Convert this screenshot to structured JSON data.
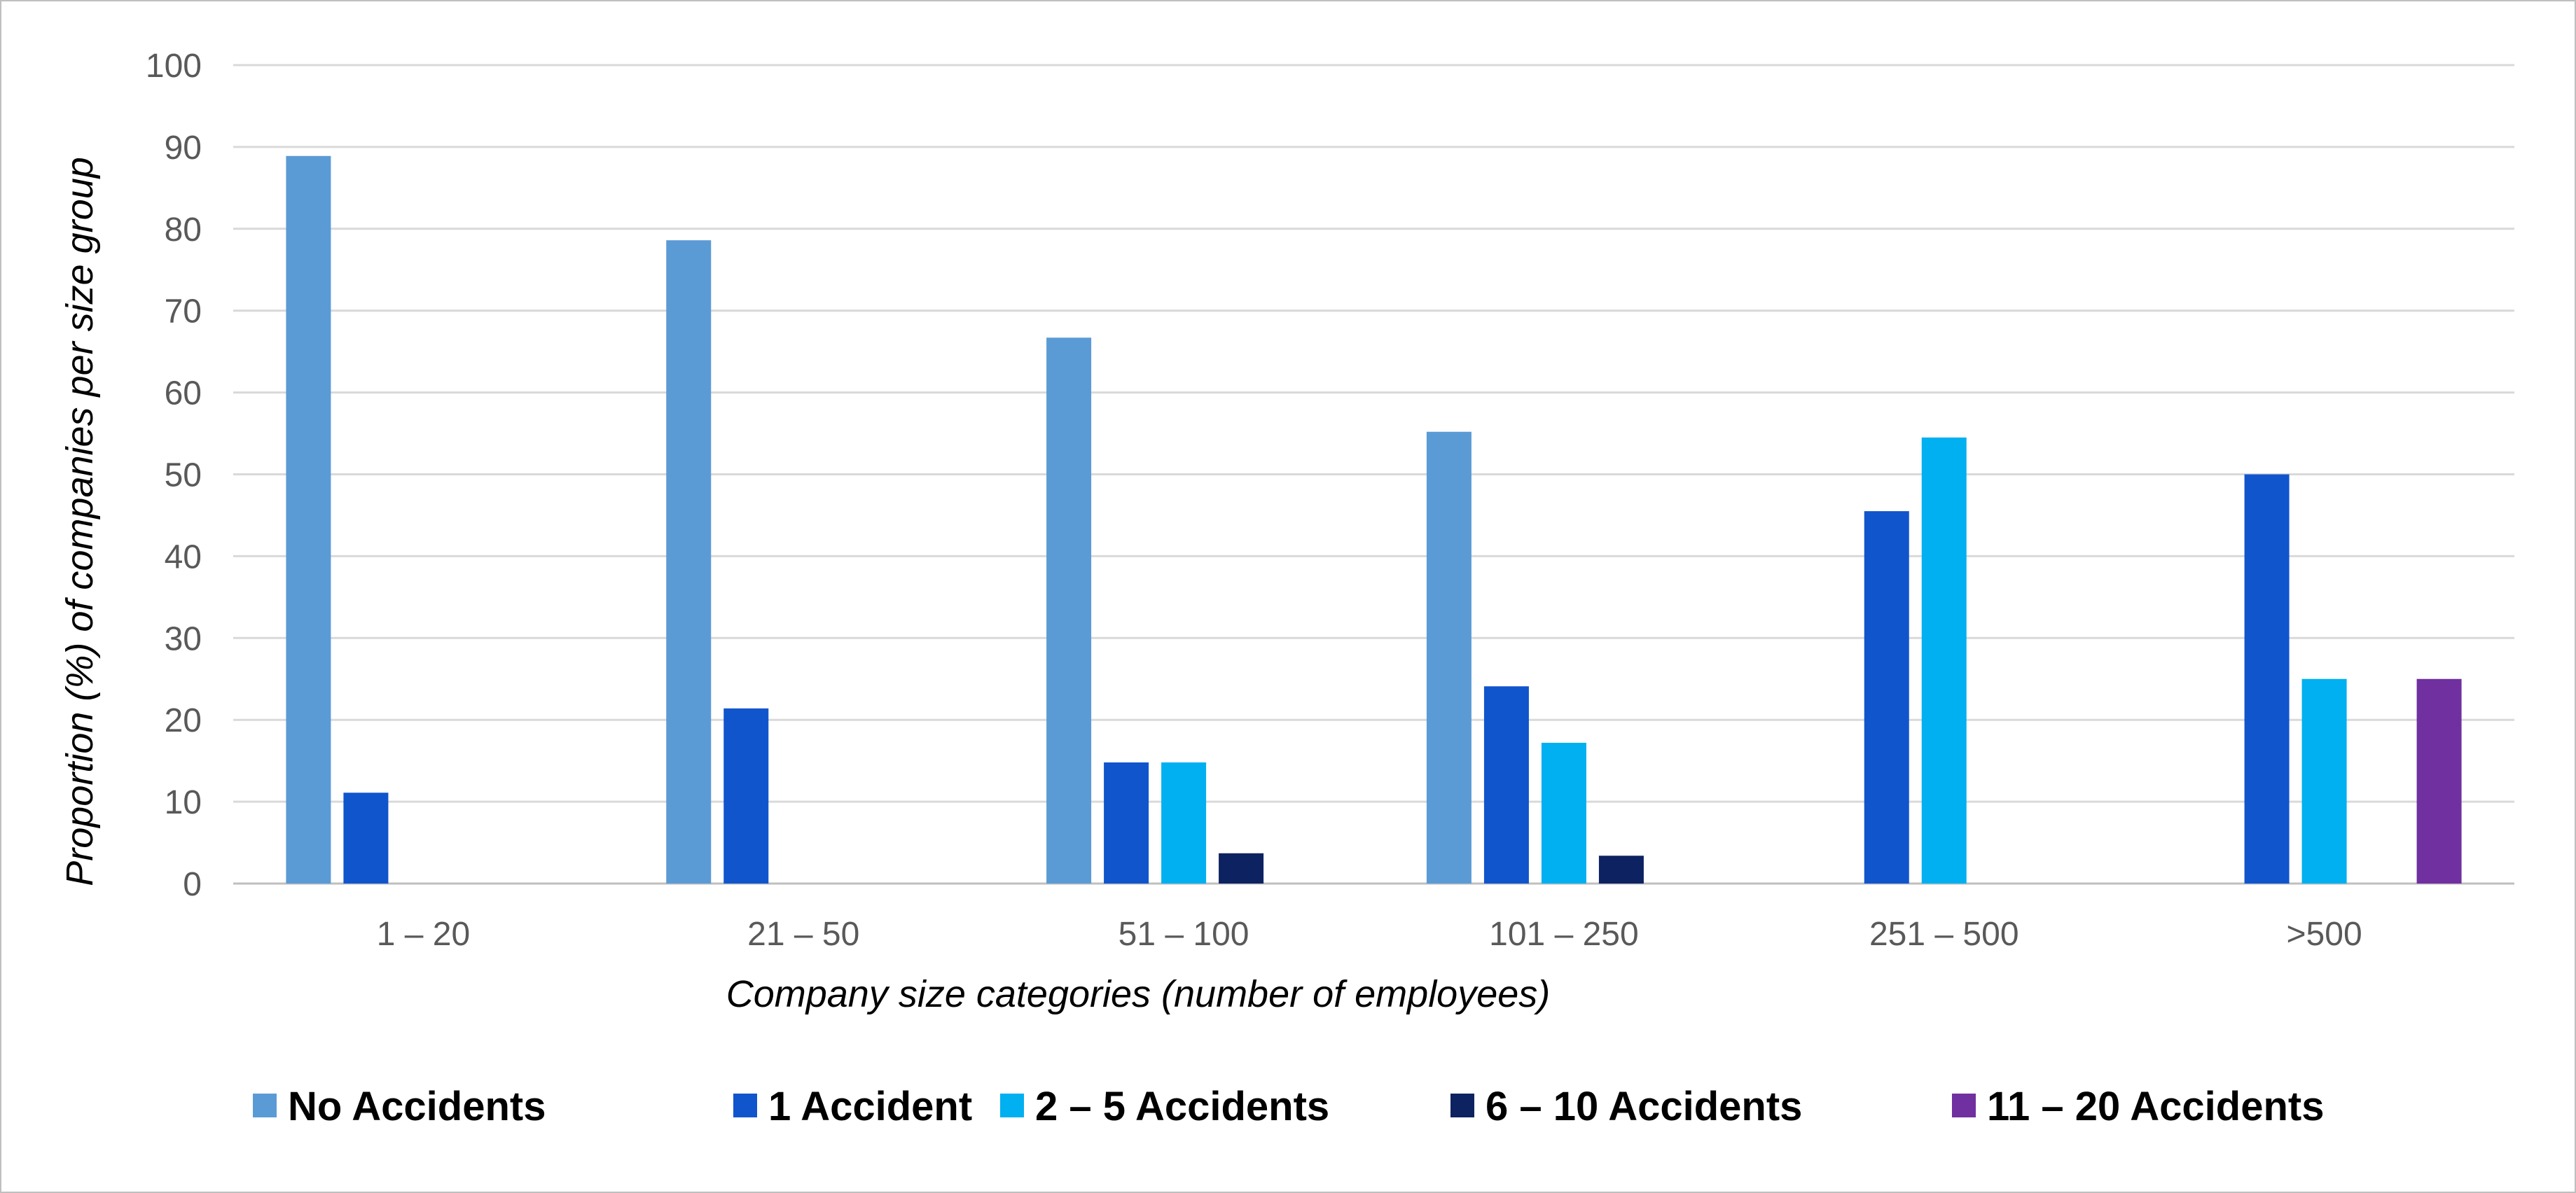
{
  "chart_data": {
    "type": "bar",
    "title": "",
    "xlabel": "Company size categories (number of employees)",
    "ylabel": "Proportion (%) of companies per size group",
    "ylim": [
      0,
      100
    ],
    "yticks": [
      "0",
      "10",
      "20",
      "30",
      "40",
      "50",
      "60",
      "70",
      "80",
      "90",
      "100"
    ],
    "grid": true,
    "legend_position": "bottom",
    "categories": [
      "1 – 20",
      "21 – 50",
      "51 – 100",
      "101 – 250",
      "251 – 500",
      ">500"
    ],
    "series": [
      {
        "name": "No Accidents",
        "color": "#5b9bd5",
        "values": [
          88.9,
          78.6,
          66.7,
          55.2,
          0,
          0
        ]
      },
      {
        "name": "1 Accident",
        "color": "#1155cc",
        "values": [
          11.1,
          21.4,
          14.8,
          24.1,
          45.5,
          50.0
        ]
      },
      {
        "name": "2 – 5 Accidents",
        "color": "#00b0f0",
        "values": [
          0,
          0,
          14.8,
          17.2,
          54.5,
          25.0
        ]
      },
      {
        "name": "6 – 10 Accidents",
        "color": "#0d2260",
        "values": [
          0,
          0,
          3.7,
          3.4,
          0,
          0
        ]
      },
      {
        "name": "11 – 20 Accidents",
        "color": "#7030a0",
        "values": [
          0,
          0,
          0,
          0,
          0,
          25.0
        ]
      }
    ]
  }
}
